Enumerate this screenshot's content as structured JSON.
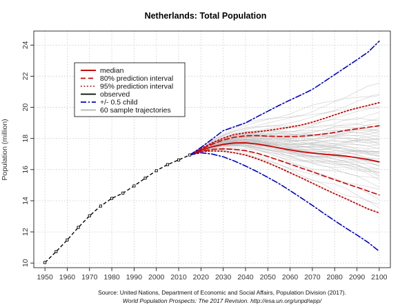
{
  "chart_data": {
    "type": "line",
    "title": "Netherlands: Total Population",
    "xlabel": "",
    "ylabel": "Population (million)",
    "xlim": [
      1945,
      2105
    ],
    "ylim": [
      9.7,
      24.9
    ],
    "grid": true,
    "legend_position": "top-left",
    "x_ticks": [
      1950,
      1960,
      1970,
      1980,
      1990,
      2000,
      2010,
      2020,
      2030,
      2040,
      2050,
      2060,
      2070,
      2080,
      2090,
      2100
    ],
    "y_ticks": [
      10,
      12,
      14,
      16,
      18,
      20,
      22,
      24
    ],
    "source_line1": "Source: United Nations, Department of Economic and Social Affairs, Population Division (2017).",
    "source_line2": "World Population Prospects: The 2017 Revision. http://esa.un.org/unpd/wpp/",
    "observed": {
      "x": [
        1950,
        1955,
        1960,
        1965,
        1970,
        1975,
        1980,
        1985,
        1990,
        1995,
        2000,
        2005,
        2010,
        2015
      ],
      "y": [
        10.03,
        10.73,
        11.48,
        12.29,
        13.03,
        13.66,
        14.15,
        14.49,
        14.95,
        15.45,
        15.93,
        16.32,
        16.62,
        16.94
      ]
    },
    "projection_x": [
      2015,
      2020,
      2025,
      2030,
      2035,
      2040,
      2045,
      2050,
      2055,
      2060,
      2065,
      2070,
      2075,
      2080,
      2085,
      2090,
      2095,
      2100
    ],
    "series": [
      {
        "name": "median",
        "color": "#cc0000",
        "style": "solid",
        "values": [
          16.94,
          17.24,
          17.47,
          17.62,
          17.71,
          17.72,
          17.65,
          17.53,
          17.39,
          17.26,
          17.15,
          17.06,
          16.99,
          16.93,
          16.86,
          16.77,
          16.65,
          16.5
        ]
      },
      {
        "name": "80% prediction interval",
        "color": "#cc0000",
        "style": "dashed",
        "values": [
          16.94,
          17.3,
          17.63,
          17.9,
          18.08,
          18.17,
          18.18,
          18.15,
          18.13,
          18.12,
          18.15,
          18.2,
          18.28,
          18.39,
          18.52,
          18.62,
          18.72,
          18.82
        ]
      },
      {
        "name": "80% prediction interval",
        "color": "#cc0000",
        "style": "dashed",
        "values": [
          16.94,
          17.18,
          17.3,
          17.33,
          17.3,
          17.22,
          17.06,
          16.84,
          16.6,
          16.35,
          16.1,
          15.86,
          15.6,
          15.35,
          15.1,
          14.87,
          14.62,
          14.37
        ]
      },
      {
        "name": "95% prediction interval",
        "color": "#cc0000",
        "style": "dotted",
        "values": [
          16.94,
          17.33,
          17.72,
          18.02,
          18.25,
          18.36,
          18.42,
          18.52,
          18.62,
          18.73,
          18.86,
          19.05,
          19.27,
          19.51,
          19.75,
          19.95,
          20.12,
          20.3
        ]
      },
      {
        "name": "95% prediction interval",
        "color": "#cc0000",
        "style": "dotted",
        "values": [
          16.94,
          17.15,
          17.2,
          17.18,
          17.08,
          16.93,
          16.7,
          16.43,
          16.13,
          15.8,
          15.47,
          15.13,
          14.78,
          14.45,
          14.13,
          13.8,
          13.47,
          13.22
        ]
      },
      {
        "name": "+/- 0.5 child",
        "color": "#0000cc",
        "style": "dotdash",
        "values": [
          16.94,
          17.42,
          17.95,
          18.5,
          18.75,
          19.0,
          19.38,
          19.75,
          20.12,
          20.47,
          20.8,
          21.15,
          21.62,
          22.1,
          22.58,
          23.05,
          23.55,
          24.25
        ]
      },
      {
        "name": "+/- 0.5 child",
        "color": "#0000cc",
        "style": "dotdash",
        "values": [
          16.94,
          17.08,
          17.0,
          16.82,
          16.55,
          16.23,
          15.88,
          15.5,
          15.1,
          14.65,
          14.18,
          13.7,
          13.2,
          12.72,
          12.25,
          11.8,
          11.32,
          10.75
        ]
      }
    ],
    "legend": [
      {
        "label": "median",
        "color": "#cc0000",
        "style": "solid"
      },
      {
        "label": "80% prediction interval",
        "color": "#cc0000",
        "style": "dashed"
      },
      {
        "label": "95% prediction interval",
        "color": "#cc0000",
        "style": "dotted"
      },
      {
        "label": "observed",
        "color": "#000000",
        "style": "solid"
      },
      {
        "label": "+/- 0.5 child",
        "color": "#0000cc",
        "style": "dotdash"
      },
      {
        "label": "60 sample trajectories",
        "color": "#bbbbbb",
        "style": "solid"
      }
    ],
    "sample_trajectories": {
      "count": 60,
      "color": "#bbbbbb",
      "endpoints_2100": [
        14.2,
        14.6,
        15.0,
        15.3,
        15.5,
        15.7,
        15.8,
        16.0,
        16.1,
        16.2,
        16.3,
        16.4,
        16.5,
        16.6,
        16.6,
        16.7,
        16.8,
        16.9,
        17.0,
        17.0,
        17.1,
        17.2,
        17.3,
        17.4,
        17.5,
        17.6,
        17.7,
        17.8,
        17.9,
        18.0,
        18.1,
        18.2,
        18.3,
        18.4,
        18.5,
        18.6,
        18.7,
        18.8,
        18.9,
        19.1,
        19.3,
        19.5,
        19.8,
        20.2,
        20.6,
        21.0,
        21.4,
        15.9,
        16.4,
        16.8,
        17.2,
        17.6,
        18.0,
        18.4,
        13.8,
        13.5,
        15.6,
        16.0,
        16.3,
        17.1
      ]
    }
  }
}
